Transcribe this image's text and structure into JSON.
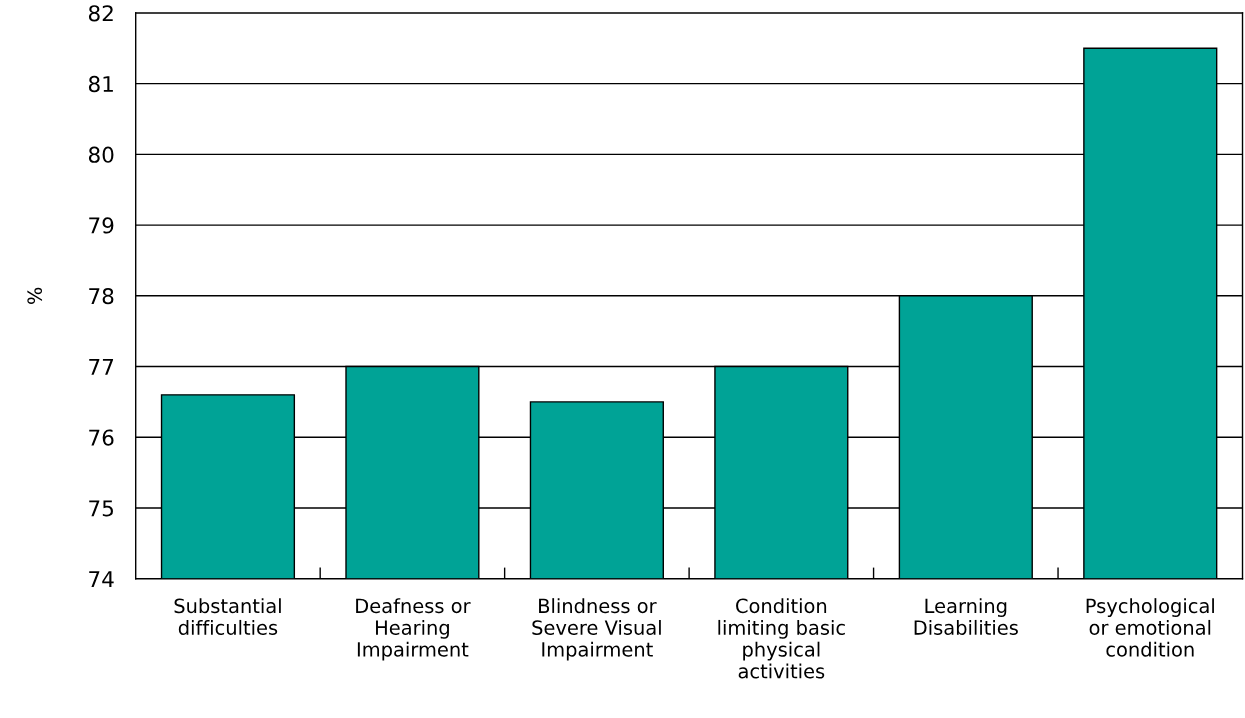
{
  "chart_data": {
    "type": "bar",
    "ylabel": "%",
    "categories": [
      "Substantial\ndifficulties",
      "Deafness or\nHearing\nImpairment",
      "Blindness or\nSevere Visual\nImpairment",
      "Condition\nlimiting basic\nphysical\nactivities",
      "Learning\nDisabilities",
      "Psychological\nor emotional\ncondition"
    ],
    "values": [
      76.6,
      77.0,
      76.5,
      77.0,
      78.0,
      81.5
    ],
    "color": "#00a396",
    "ylim": [
      74,
      82
    ],
    "yticks": [
      74,
      75,
      76,
      77,
      78,
      79,
      80,
      81,
      82
    ],
    "grid": "y"
  }
}
